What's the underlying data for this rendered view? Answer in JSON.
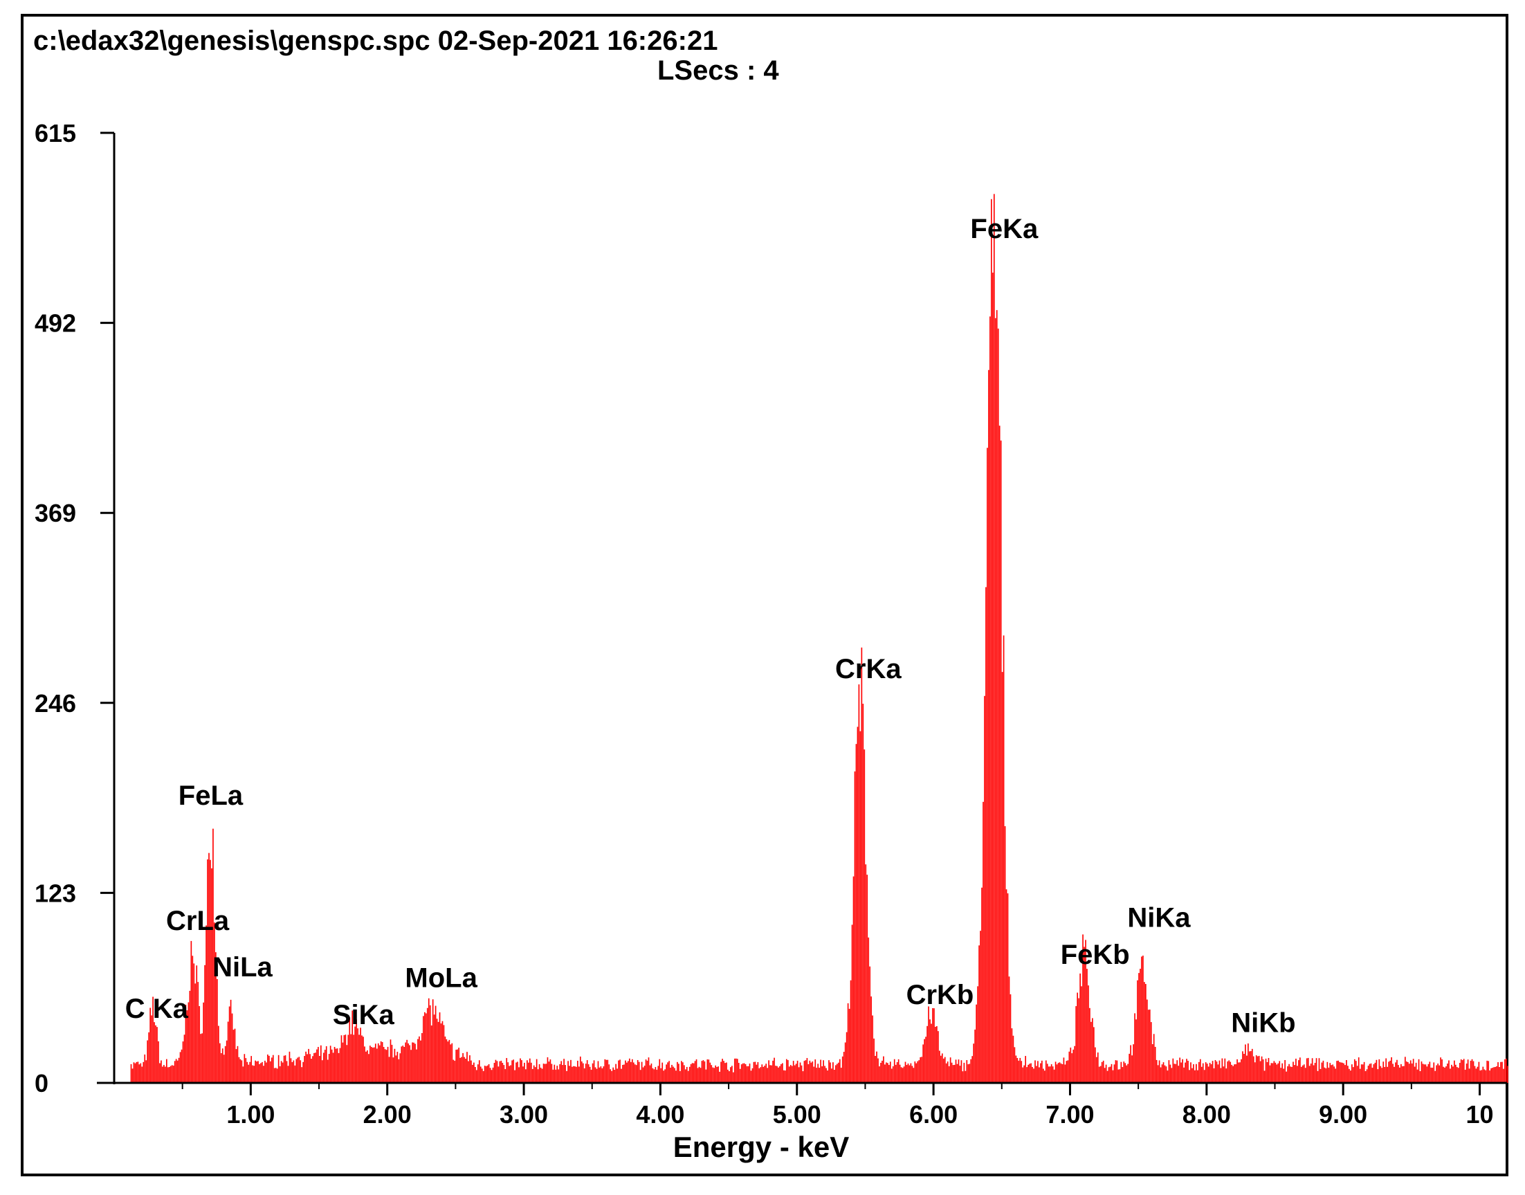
{
  "header": {
    "file_line": "c:\\edax32\\genesis\\genspc.spc  02-Sep-2021 16:26:21",
    "lsecs_line": "LSecs :  4"
  },
  "chart_data": {
    "type": "bar",
    "title": "",
    "xlabel": "Energy - keV",
    "ylabel": "",
    "xlim": [
      0,
      10.2
    ],
    "ylim": [
      0,
      615
    ],
    "x_ticks": [
      "1.00",
      "2.00",
      "3.00",
      "4.00",
      "5.00",
      "6.00",
      "7.00",
      "8.00",
      "9.00",
      "10"
    ],
    "x_tick_values": [
      1,
      2,
      3,
      4,
      5,
      6,
      7,
      8,
      9,
      10
    ],
    "y_ticks": [
      "0",
      "123",
      "246",
      "369",
      "492",
      "615"
    ],
    "y_tick_values": [
      0,
      123,
      246,
      369,
      492,
      615
    ],
    "bar_color": "#ff0000",
    "baseline_counts": 12,
    "peaks": [
      {
        "label": "C Ka",
        "energy": 0.28,
        "counts": 38,
        "width": 0.025
      },
      {
        "label": "CrLa",
        "energy": 0.57,
        "counts": 68,
        "width": 0.04
      },
      {
        "label": "FeLa",
        "energy": 0.705,
        "counts": 160,
        "width": 0.03
      },
      {
        "label": "NiLa",
        "energy": 0.85,
        "counts": 30,
        "width": 0.03
      },
      {
        "label": "SiKa",
        "energy": 1.74,
        "counts": 18,
        "width": 0.05
      },
      {
        "label": "MoLa",
        "energy": 2.32,
        "counts": 28,
        "width": 0.07
      },
      {
        "label": "CrKa",
        "energy": 5.46,
        "counts": 232,
        "width": 0.045
      },
      {
        "label": "CrKb",
        "energy": 5.98,
        "counts": 34,
        "width": 0.04
      },
      {
        "label": "FeKa",
        "energy": 6.44,
        "counts": 520,
        "width": 0.055
      },
      {
        "label": "FeKb",
        "energy": 7.1,
        "counts": 68,
        "width": 0.045
      },
      {
        "label": "NiKa",
        "energy": 7.53,
        "counts": 62,
        "width": 0.045
      },
      {
        "label": "NiKb",
        "energy": 8.31,
        "counts": 10,
        "width": 0.04
      }
    ],
    "peak_labels": [
      {
        "text": "C Ka",
        "energy": 0.08,
        "counts": 42
      },
      {
        "text": "FeLa",
        "energy": 0.47,
        "counts": 180
      },
      {
        "text": "CrLa",
        "energy": 0.38,
        "counts": 99
      },
      {
        "text": "NiLa",
        "energy": 0.72,
        "counts": 69
      },
      {
        "text": "SiKa",
        "energy": 1.6,
        "counts": 38
      },
      {
        "text": "MoLa",
        "energy": 2.13,
        "counts": 62
      },
      {
        "text": "CrKa",
        "energy": 5.28,
        "counts": 262
      },
      {
        "text": "FeKa",
        "energy": 6.27,
        "counts": 547
      },
      {
        "text": "CrKb",
        "energy": 5.8,
        "counts": 51
      },
      {
        "text": "FeKb",
        "energy": 6.93,
        "counts": 77
      },
      {
        "text": "NiKa",
        "energy": 7.42,
        "counts": 101
      },
      {
        "text": "NiKb",
        "energy": 8.18,
        "counts": 33
      }
    ]
  }
}
